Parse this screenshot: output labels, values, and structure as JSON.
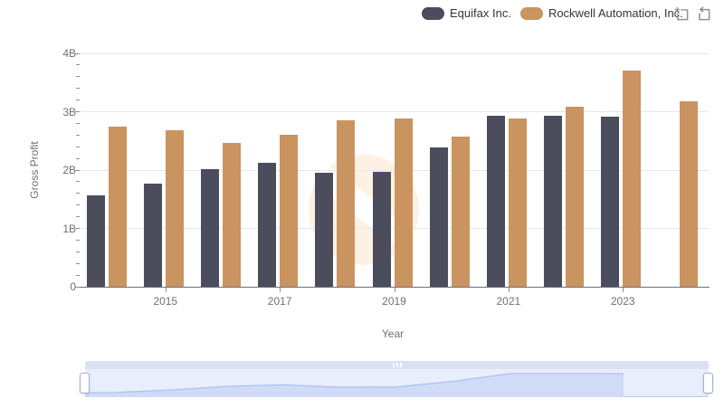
{
  "legend": {
    "items": [
      {
        "label": "Equifax Inc.",
        "color": "#4b4d5c"
      },
      {
        "label": "Rockwell Automation, Inc.",
        "color": "#ca9461"
      }
    ]
  },
  "toolbox": {
    "icons": [
      {
        "name": "area-zoom-icon"
      },
      {
        "name": "restore-zoom-icon"
      }
    ]
  },
  "chart_data": {
    "type": "bar",
    "title": "",
    "xlabel": "Year",
    "ylabel": "Gross Profit",
    "unit": "B",
    "ylim": [
      0,
      4
    ],
    "y_tick_labels": [
      "0",
      "1B",
      "2B",
      "3B",
      "4B"
    ],
    "categories": [
      "2014",
      "2015",
      "2016",
      "2017",
      "2018",
      "2019",
      "2020",
      "2021",
      "2022",
      "2023",
      "2024"
    ],
    "x_tick_labels": [
      "2015",
      "2017",
      "2019",
      "2021",
      "2023"
    ],
    "x_tick_indices": [
      1,
      3,
      5,
      7,
      9
    ],
    "grid": true,
    "legend_position": "top-right",
    "series": [
      {
        "name": "Equifax Inc.",
        "color": "#4b4d5c",
        "values": [
          1.57,
          1.76,
          2.02,
          2.13,
          1.96,
          1.97,
          2.38,
          2.93,
          2.93,
          2.92,
          null
        ]
      },
      {
        "name": "Rockwell Automation, Inc.",
        "color": "#ca9461",
        "values": [
          2.74,
          2.68,
          2.46,
          2.61,
          2.86,
          2.89,
          2.58,
          2.88,
          3.09,
          3.7,
          3.18
        ]
      }
    ]
  },
  "navigator": {
    "fill_color": "#cfdbf7",
    "line_color": "#aec2ef",
    "track_color": "#e9eefc",
    "bar_color": "#dce1f2"
  },
  "watermark": {
    "color": "#fcf1e3"
  }
}
